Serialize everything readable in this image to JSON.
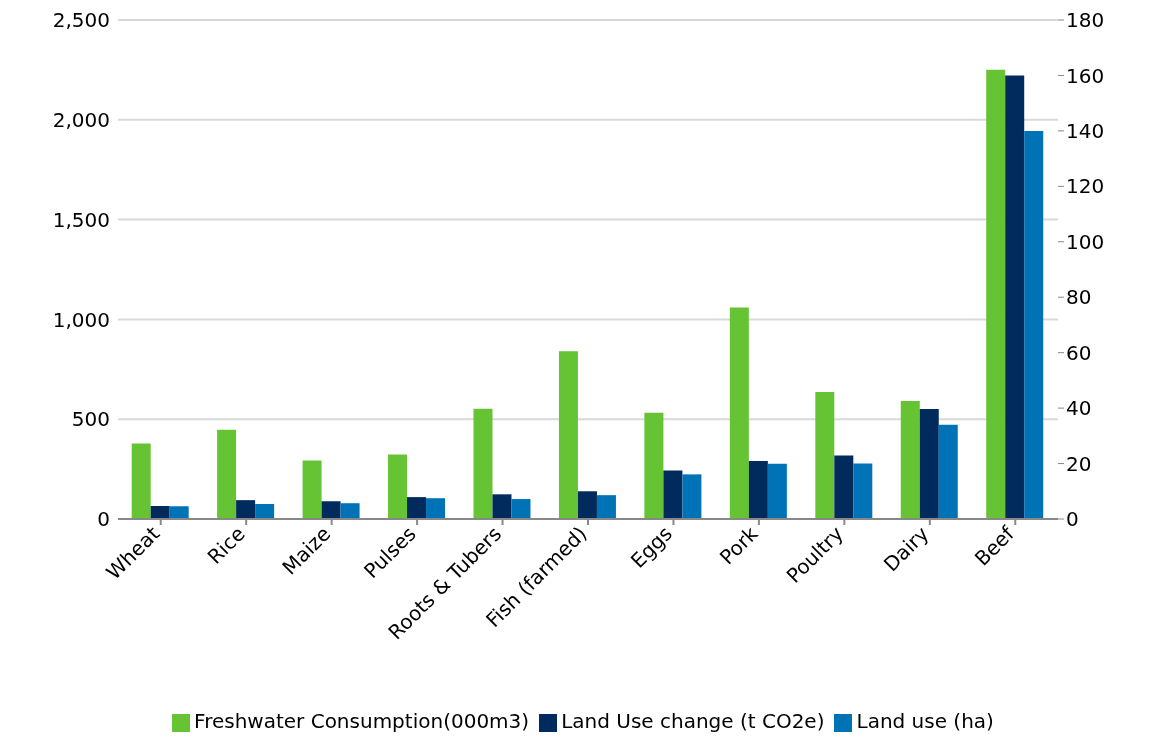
{
  "chart_data": {
    "type": "bar",
    "categories": [
      "Wheat",
      "Rice",
      "Maize",
      "Pulses",
      "Roots & Tubers",
      "Fish (farmed)",
      "Eggs",
      "Pork",
      "Poultry",
      "Dairy",
      "Beef"
    ],
    "series": [
      {
        "name": "Freshwater Consumption(000m3)",
        "color": "#66c434",
        "values": [
          378,
          447,
          293,
          323,
          552,
          840,
          532,
          1059,
          636,
          591,
          2251
        ]
      },
      {
        "name": "Land Use change (t CO2e)",
        "color": "#002b5c",
        "axis": "y2",
        "values": [
          4.7,
          6.8,
          6.4,
          7.9,
          8.9,
          10.0,
          17.5,
          20.9,
          22.9,
          39.7,
          160
        ]
      },
      {
        "name": "Land use (ha)",
        "color": "#0073b6",
        "axis": "y2",
        "values": [
          4.6,
          5.4,
          5.7,
          7.5,
          7.2,
          8.6,
          16.1,
          19.9,
          20.0,
          34.0,
          140
        ]
      }
    ],
    "ylim": [
      0,
      2500
    ],
    "yticks": [
      0,
      500,
      {
        "value": 1000,
        "label": "1,000"
      },
      {
        "value": 1500,
        "label": "1,500"
      },
      {
        "value": 2000,
        "label": "2,000"
      },
      {
        "value": 2500,
        "label": "2,500"
      }
    ],
    "y2lim": [
      0,
      180
    ],
    "y2ticks": [
      0,
      20,
      40,
      60,
      80,
      100,
      120,
      140,
      160,
      180
    ],
    "grid": "y",
    "legend": "bottom"
  }
}
